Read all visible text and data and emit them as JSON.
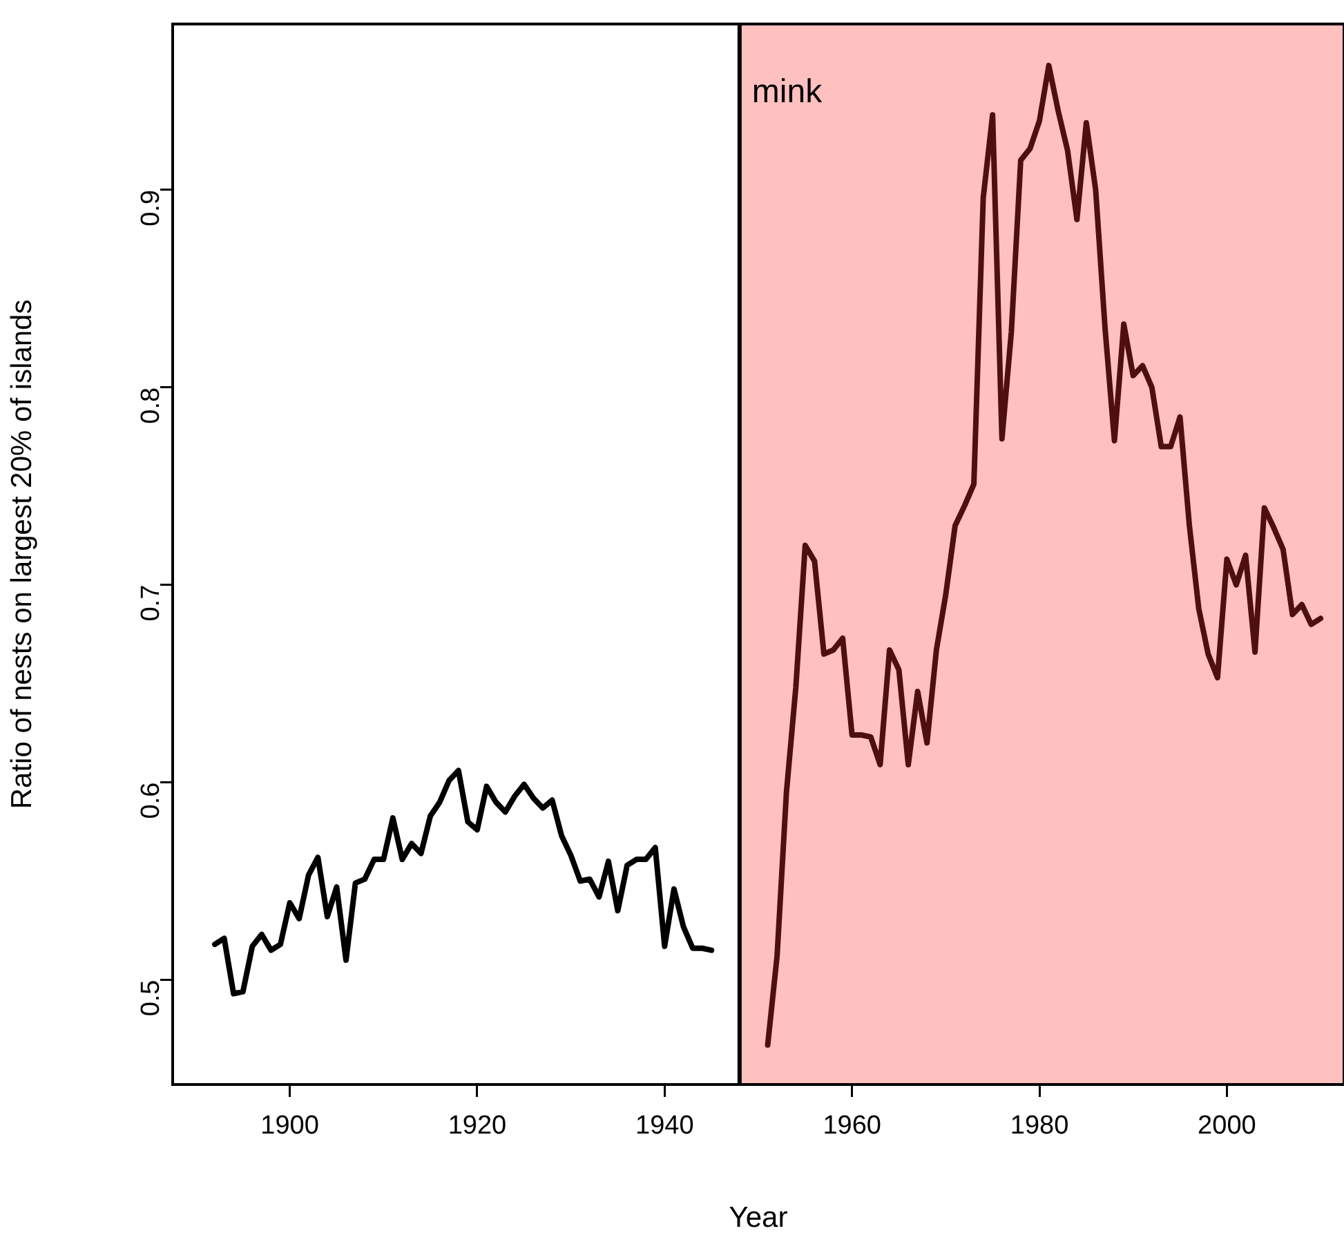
{
  "chart_data": {
    "type": "line",
    "xlabel": "Year",
    "ylabel": "Ratio of nests on largest 20% of islands",
    "xlim": [
      1887.5,
      2012.5
    ],
    "ylim": [
      0.447,
      0.984
    ],
    "xticks": [
      1900,
      1920,
      1940,
      1960,
      1980,
      2000
    ],
    "yticks": [
      0.5,
      0.6,
      0.7,
      0.8,
      0.9
    ],
    "grid": false,
    "legend": false,
    "line_style": "solid",
    "marker": "none",
    "series": [
      {
        "color": "#000000",
        "x": [
          1892,
          1893,
          1894,
          1895,
          1896,
          1897,
          1898,
          1899,
          1900,
          1901,
          1902,
          1903,
          1904,
          1905,
          1906,
          1907,
          1908,
          1909,
          1910,
          1911,
          1912,
          1913,
          1914,
          1915,
          1916,
          1917,
          1918,
          1919,
          1920,
          1921,
          1922,
          1923,
          1924,
          1925,
          1926,
          1927,
          1928,
          1929,
          1930,
          1931,
          1932,
          1933,
          1934,
          1935,
          1936,
          1937,
          1938,
          1939,
          1940,
          1941,
          1942,
          1943,
          1944,
          1945
        ],
        "values": [
          0.518,
          0.521,
          0.493,
          0.494,
          0.517,
          0.523,
          0.515,
          0.518,
          0.539,
          0.531,
          0.553,
          0.562,
          0.532,
          0.547,
          0.51,
          0.549,
          0.551,
          0.561,
          0.561,
          0.582,
          0.561,
          0.569,
          0.564,
          0.583,
          0.59,
          0.601,
          0.606,
          0.58,
          0.576,
          0.598,
          0.59,
          0.585,
          0.593,
          0.599,
          0.592,
          0.587,
          0.591,
          0.573,
          0.563,
          0.55,
          0.551,
          0.542,
          0.56,
          0.535,
          0.558,
          0.561,
          0.561,
          0.567,
          0.517,
          0.546,
          0.527,
          0.516,
          0.516,
          0.515
        ]
      },
      {
        "color": "#4d0f0f",
        "x": [
          1951,
          1952,
          1953,
          1954,
          1955,
          1956,
          1957,
          1958,
          1959,
          1960,
          1961,
          1962,
          1963,
          1964,
          1965,
          1966,
          1967,
          1968,
          1969,
          1970,
          1971,
          1972,
          1973,
          1974,
          1975,
          1976,
          1977,
          1978,
          1979,
          1980,
          1981,
          1982,
          1983,
          1984,
          1985,
          1986,
          1987,
          1988,
          1989,
          1990,
          1991,
          1992,
          1993,
          1994,
          1995,
          1996,
          1997,
          1998,
          1999,
          2000,
          2001,
          2002,
          2003,
          2004,
          2005,
          2006,
          2007,
          2008,
          2009,
          2010
        ],
        "values": [
          0.467,
          0.512,
          0.595,
          0.648,
          0.72,
          0.712,
          0.665,
          0.667,
          0.673,
          0.624,
          0.624,
          0.623,
          0.609,
          0.667,
          0.657,
          0.609,
          0.646,
          0.62,
          0.667,
          0.695,
          0.73,
          0.74,
          0.751,
          0.896,
          0.938,
          0.774,
          0.828,
          0.915,
          0.921,
          0.935,
          0.963,
          0.94,
          0.92,
          0.885,
          0.934,
          0.9,
          0.83,
          0.773,
          0.832,
          0.806,
          0.811,
          0.8,
          0.77,
          0.77,
          0.785,
          0.73,
          0.688,
          0.665,
          0.653,
          0.713,
          0.7,
          0.715,
          0.666,
          0.739,
          0.729,
          0.718,
          0.685,
          0.69,
          0.68,
          0.683
        ]
      }
    ],
    "bands": [
      {
        "axis": "x",
        "from": 1948,
        "to": 2012.5,
        "label": "mink",
        "color": "#ffc0c0"
      }
    ],
    "ref_lines": [
      {
        "axis": "x",
        "value": 1948,
        "color": "#000000",
        "line_style": "solid"
      }
    ]
  }
}
